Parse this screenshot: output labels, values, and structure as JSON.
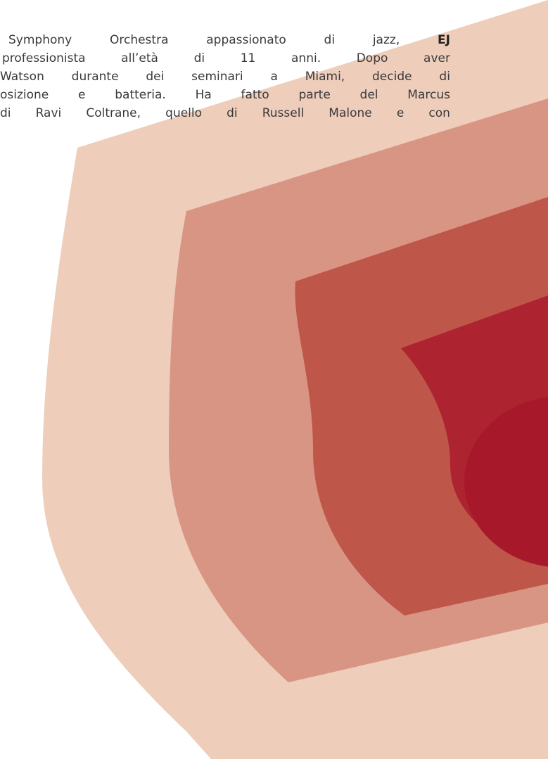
{
  "paragraph": {
    "lines": [
      {
        "text": "Symphony Orchestra appassionato di jazz,",
        "bold": "EJ"
      },
      {
        "text": "professionista all’età di 11 anni. Dopo aver"
      },
      {
        "text": "Watson durante dei seminari a Miami, decide di"
      },
      {
        "text": "osizione e batteria. Ha fatto parte del Marcus"
      },
      {
        "text": "di Ravi Coltrane, quello di Russell Malone e con"
      }
    ]
  }
}
